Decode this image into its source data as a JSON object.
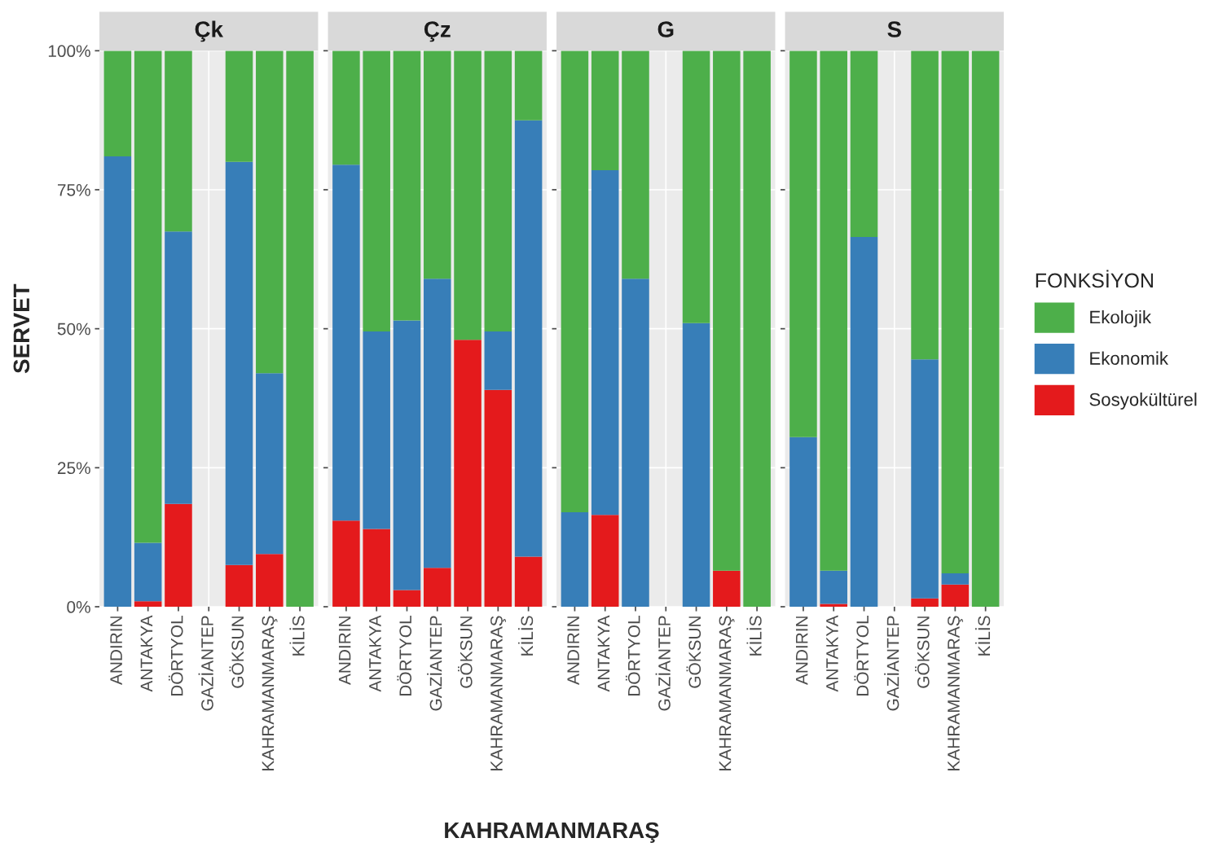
{
  "chart_data": [
    {
      "type": "bar",
      "title": "Çk",
      "ylabel": "SERVET",
      "xlabel": "KAHRAMANMARAŞ",
      "stacked": true,
      "grid": true,
      "legend": "right",
      "legend_title": "FONKSİYON",
      "categories": [
        "ANDIRIN",
        "ANTAKYA",
        "DÖRTYOL",
        "GAZİANTEP",
        "GÖKSUN",
        "KAHRAMANMARAŞ",
        "KİLİS"
      ],
      "ylim": [
        0,
        100
      ],
      "yticks": [
        {
          "value": 0,
          "label": "0%"
        },
        {
          "value": 25,
          "label": "25%"
        },
        {
          "value": 50,
          "label": "50%"
        },
        {
          "value": 75,
          "label": "75%"
        },
        {
          "value": 100,
          "label": "100%"
        }
      ],
      "series": [
        {
          "name": "Sosyokültürel",
          "color": "#e41a1c",
          "values": [
            0,
            1,
            18.5,
            null,
            7.5,
            9.5,
            0
          ]
        },
        {
          "name": "Ekonomik",
          "color": "#377eb8",
          "values": [
            81,
            10.5,
            49,
            null,
            72.5,
            32.5,
            0
          ]
        },
        {
          "name": "Ekolojik",
          "color": "#4daf4a",
          "values": [
            19,
            88.5,
            32.5,
            null,
            20,
            58,
            100
          ]
        }
      ]
    },
    {
      "type": "bar",
      "title": "Çz",
      "stacked": true,
      "grid": true,
      "tick_labels": "x",
      "categories": [
        "ANDIRIN",
        "ANTAKYA",
        "DÖRTYOL",
        "GAZİANTEP",
        "GÖKSUN",
        "KAHRAMANMARAŞ",
        "KİLİS"
      ],
      "ylim": [
        0,
        100
      ],
      "yticks": [
        {
          "value": 0,
          "label": null
        },
        {
          "value": 25,
          "label": null
        },
        {
          "value": 50,
          "label": null
        },
        {
          "value": 75,
          "label": null
        },
        {
          "value": 100,
          "label": null
        }
      ],
      "series": [
        {
          "color": "#e41a1c",
          "values": [
            15.5,
            14,
            3,
            7,
            48,
            39,
            9
          ]
        },
        {
          "color": "#377eb8",
          "values": [
            64,
            35.5,
            48.5,
            52,
            0,
            10.5,
            78.5
          ]
        },
        {
          "color": "#4daf4a",
          "values": [
            20.5,
            50.5,
            48.5,
            41,
            52,
            50.5,
            12.5
          ]
        }
      ]
    },
    {
      "type": "bar",
      "title": "G",
      "stacked": true,
      "grid": true,
      "tick_labels": "x",
      "categories": [
        "ANDIRIN",
        "ANTAKYA",
        "DÖRTYOL",
        "GAZİANTEP",
        "GÖKSUN",
        "KAHRAMANMARAŞ",
        "KİLİS"
      ],
      "ylim": [
        0,
        100
      ],
      "yticks": [
        {
          "value": 0,
          "label": null
        },
        {
          "value": 25,
          "label": null
        },
        {
          "value": 50,
          "label": null
        },
        {
          "value": 75,
          "label": null
        },
        {
          "value": 100,
          "label": null
        }
      ],
      "series": [
        {
          "color": "#e41a1c",
          "values": [
            0,
            16.5,
            0,
            null,
            0,
            6.5,
            0
          ]
        },
        {
          "color": "#377eb8",
          "values": [
            17,
            62,
            59,
            null,
            51,
            0,
            0
          ]
        },
        {
          "color": "#4daf4a",
          "values": [
            83,
            21.5,
            41,
            null,
            49,
            93.5,
            100
          ]
        }
      ]
    },
    {
      "type": "bar",
      "title": "S",
      "stacked": true,
      "grid": true,
      "tick_labels": "x",
      "categories": [
        "ANDIRIN",
        "ANTAKYA",
        "DÖRTYOL",
        "GAZİANTEP",
        "GÖKSUN",
        "KAHRAMANMARAŞ",
        "KİLİS"
      ],
      "ylim": [
        0,
        100
      ],
      "yticks": [
        {
          "value": 0,
          "label": null
        },
        {
          "value": 25,
          "label": null
        },
        {
          "value": 50,
          "label": null
        },
        {
          "value": 75,
          "label": null
        },
        {
          "value": 100,
          "label": null
        }
      ],
      "series": [
        {
          "color": "#e41a1c",
          "values": [
            0,
            0.5,
            0,
            null,
            1.5,
            4,
            0
          ]
        },
        {
          "color": "#377eb8",
          "values": [
            30.5,
            6,
            66.5,
            null,
            43,
            2,
            0
          ]
        },
        {
          "color": "#4daf4a",
          "values": [
            69.5,
            93.5,
            33.5,
            null,
            55.5,
            94,
            100
          ]
        }
      ]
    }
  ]
}
